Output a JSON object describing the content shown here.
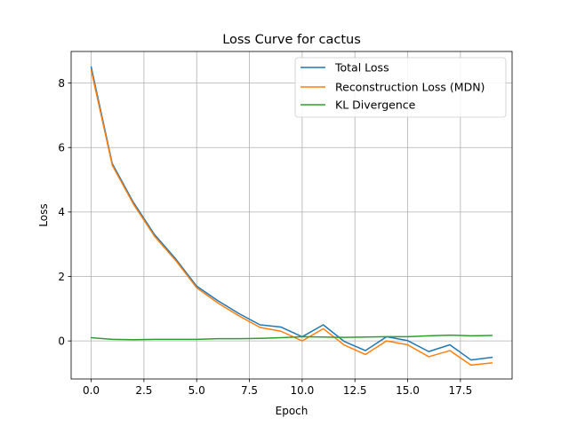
{
  "chart_data": {
    "type": "line",
    "title": "Loss Curve for cactus",
    "xlabel": "Epoch",
    "ylabel": "Loss",
    "x": [
      0,
      1,
      2,
      3,
      4,
      5,
      6,
      7,
      8,
      9,
      10,
      11,
      12,
      13,
      14,
      15,
      16,
      17,
      18,
      19
    ],
    "xlim": [
      -0.95,
      19.95
    ],
    "ylim": [
      -1.18,
      8.98
    ],
    "x_ticks": [
      0.0,
      2.5,
      5.0,
      7.5,
      10.0,
      12.5,
      15.0,
      17.5
    ],
    "x_tick_labels": [
      "0.0",
      "2.5",
      "5.0",
      "7.5",
      "10.0",
      "12.5",
      "15.0",
      "17.5"
    ],
    "y_ticks": [
      0,
      2,
      4,
      6,
      8
    ],
    "y_tick_labels": [
      "0",
      "2",
      "4",
      "6",
      "8"
    ],
    "grid": true,
    "legend_position": "top-right",
    "series": [
      {
        "name": "Total Loss",
        "color": "#1f77b4",
        "values": [
          8.5,
          5.5,
          4.3,
          3.3,
          2.55,
          1.7,
          1.25,
          0.85,
          0.5,
          0.43,
          0.13,
          0.5,
          -0.02,
          -0.3,
          0.13,
          0.01,
          -0.33,
          -0.12,
          -0.59,
          -0.51
        ]
      },
      {
        "name": "Reconstruction Loss (MDN)",
        "color": "#ff7f0e",
        "values": [
          8.4,
          5.45,
          4.25,
          3.25,
          2.5,
          1.65,
          1.18,
          0.78,
          0.42,
          0.3,
          0.0,
          0.38,
          -0.13,
          -0.42,
          0.0,
          -0.12,
          -0.49,
          -0.3,
          -0.75,
          -0.68
        ]
      },
      {
        "name": "KL Divergence",
        "color": "#2ca02c",
        "values": [
          0.1,
          0.05,
          0.04,
          0.05,
          0.05,
          0.05,
          0.07,
          0.07,
          0.08,
          0.1,
          0.13,
          0.12,
          0.11,
          0.12,
          0.13,
          0.13,
          0.16,
          0.18,
          0.16,
          0.17
        ]
      }
    ]
  }
}
